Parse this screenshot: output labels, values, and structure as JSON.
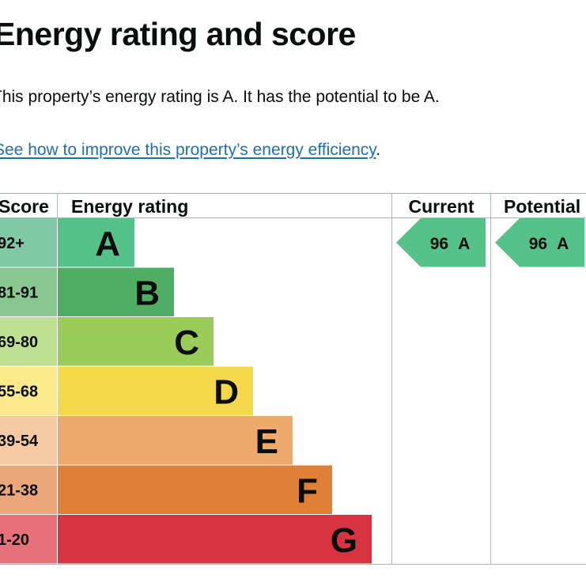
{
  "heading": "Energy rating and score",
  "intro_text": "This property’s energy rating is A. It has the potential to be A.",
  "improve_link": {
    "text": "See how to improve this property’s energy efficiency",
    "suffix": "."
  },
  "table": {
    "headers": {
      "score": "Score",
      "rating": "Energy rating",
      "current": "Current",
      "potential": "Potential"
    },
    "bands": [
      {
        "score": "92+",
        "letter": "A",
        "color": "#55c28a",
        "score_color": "#7fc9a6"
      },
      {
        "score": "81-91",
        "letter": "B",
        "color": "#50ae64",
        "score_color": "#89c791"
      },
      {
        "score": "69-80",
        "letter": "C",
        "color": "#99cc58",
        "score_color": "#bee093"
      },
      {
        "score": "55-68",
        "letter": "D",
        "color": "#f6d94b",
        "score_color": "#fae88a"
      },
      {
        "score": "39-54",
        "letter": "E",
        "color": "#efaa6b",
        "score_color": "#f5c9a2"
      },
      {
        "score": "21-38",
        "letter": "F",
        "color": "#e07f36",
        "score_color": "#eba77a"
      },
      {
        "score": "1-20",
        "letter": "G",
        "color": "#d73340",
        "score_color": "#e7707a"
      }
    ],
    "current": {
      "score": "96",
      "letter": "A",
      "band_index": 0,
      "color": "#55c28a"
    },
    "potential": {
      "score": "96",
      "letter": "A",
      "band_index": 0,
      "color": "#55c28a"
    }
  }
}
